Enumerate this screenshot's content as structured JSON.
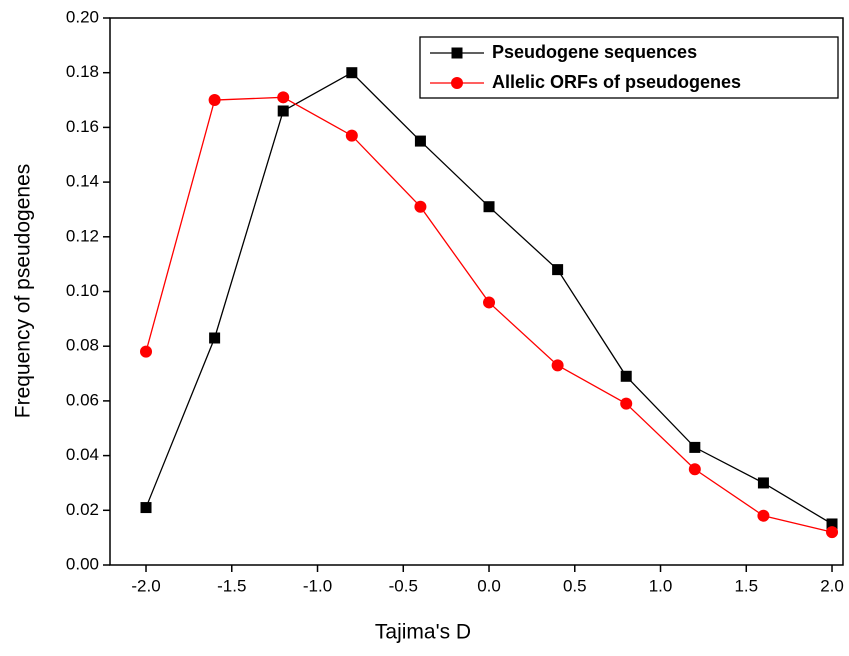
{
  "chart_data": {
    "type": "line",
    "xlabel": "Tajima's D",
    "ylabel": "Frequency of pseudogenes",
    "x": [
      -2,
      -1.6,
      -1.2,
      -0.8,
      -0.4,
      0,
      0.4,
      0.8,
      1.2,
      1.6,
      2
    ],
    "series": [
      {
        "name": "Pseudogene sequences",
        "color": "#000000",
        "marker": "square",
        "values": [
          0.021,
          0.083,
          0.166,
          0.18,
          0.155,
          0.131,
          0.108,
          0.069,
          0.043,
          0.03,
          0.015
        ]
      },
      {
        "name": "Allelic ORFs of pseudogenes",
        "color": "#ff0000",
        "marker": "circle",
        "values": [
          0.078,
          0.17,
          0.171,
          0.157,
          0.131,
          0.096,
          0.073,
          0.059,
          0.035,
          0.018,
          0.012
        ]
      }
    ],
    "xlim": [
      -2.21,
      2.064
    ],
    "ylim": [
      0,
      0.2
    ],
    "xticks": [
      {
        "value": -2,
        "label": "-2.0"
      },
      -1.5,
      {
        "value": -1,
        "label": "-1.0"
      },
      -0.5,
      {
        "value": 0,
        "label": "0.0"
      },
      0.5,
      {
        "value": 1,
        "label": "1.0"
      },
      1.5,
      {
        "value": 2,
        "label": "2.0"
      }
    ],
    "yticks": [
      {
        "value": 0,
        "label": "0.00"
      },
      0.02,
      0.04,
      0.06,
      0.08,
      {
        "value": 0.1,
        "label": "0.10"
      },
      0.12,
      0.14,
      0.16,
      0.18,
      {
        "value": 0.2,
        "label": "0.20"
      }
    ],
    "legend": "upper right"
  }
}
